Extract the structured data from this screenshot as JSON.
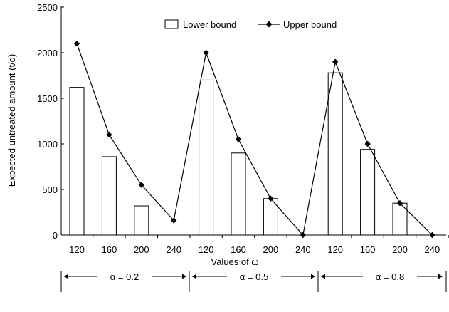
{
  "chart_data": {
    "type": "bar",
    "title": "",
    "ylabel": "Expected untreated amount (t/d)",
    "xlabel": "Values of ω",
    "ylim": [
      0,
      2500
    ],
    "yticks": [
      0,
      500,
      1000,
      1500,
      2000,
      2500
    ],
    "categories": [
      "120",
      "160",
      "200",
      "240",
      "120",
      "160",
      "200",
      "240",
      "120",
      "160",
      "200",
      "240"
    ],
    "groups": [
      {
        "label": "α = 0.2"
      },
      {
        "label": "α = 0.5"
      },
      {
        "label": "α = 0.8"
      }
    ],
    "legend": {
      "position": "top"
    },
    "series": [
      {
        "name": "Lower bound",
        "kind": "bar",
        "values": [
          1620,
          860,
          320,
          0,
          1700,
          900,
          400,
          0,
          1780,
          940,
          350,
          0
        ]
      },
      {
        "name": "Upper bound",
        "kind": "line",
        "values": [
          2100,
          1100,
          550,
          160,
          2000,
          1050,
          400,
          0,
          1900,
          1000,
          350,
          0
        ]
      }
    ]
  }
}
